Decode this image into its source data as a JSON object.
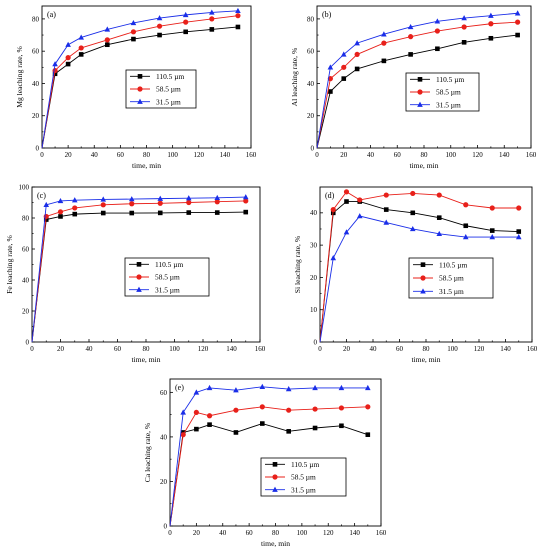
{
  "figure": {
    "series_names": [
      "110.5 µm",
      "58.5 µm",
      "31.5 µm"
    ],
    "series_colors": [
      "#000000",
      "#e8201a",
      "#1a2ee8"
    ],
    "series_markers": [
      "square",
      "circle",
      "triangle"
    ]
  },
  "chart_data": [
    {
      "type": "line",
      "panel_label": "(a)",
      "xlabel": "time, min",
      "ylabel": "Mg leaching rate, %",
      "xlim": [
        0,
        160
      ],
      "ylim": [
        0,
        88
      ],
      "xticks": [
        0,
        20,
        40,
        60,
        80,
        100,
        120,
        140,
        160
      ],
      "yticks": [
        0,
        20,
        40,
        60,
        80
      ],
      "legend_position": "center-right",
      "grid": false,
      "x": [
        0,
        10,
        20,
        30,
        50,
        70,
        90,
        110,
        130,
        150
      ],
      "series": [
        {
          "name": "110.5 µm",
          "values": [
            0,
            46,
            52,
            58,
            64,
            67.5,
            70,
            72,
            73.5,
            75
          ]
        },
        {
          "name": "58.5 µm",
          "values": [
            0,
            48,
            56,
            62,
            67,
            72,
            75.5,
            78,
            80,
            82
          ]
        },
        {
          "name": "31.5 µm",
          "values": [
            0,
            52,
            64,
            68.5,
            73.5,
            77.5,
            80.5,
            82.5,
            84,
            85
          ]
        }
      ]
    },
    {
      "type": "line",
      "panel_label": "(b)",
      "xlabel": "time, min",
      "ylabel": "Al leaching rate, %",
      "xlim": [
        0,
        160
      ],
      "ylim": [
        0,
        88
      ],
      "xticks": [
        0,
        20,
        40,
        60,
        80,
        100,
        120,
        140,
        160
      ],
      "yticks": [
        0,
        20,
        40,
        60,
        80
      ],
      "legend_position": "center-right",
      "grid": false,
      "x": [
        0,
        10,
        20,
        30,
        50,
        70,
        90,
        110,
        130,
        150
      ],
      "series": [
        {
          "name": "110.5 µm",
          "values": [
            0,
            35,
            43,
            49,
            54,
            58,
            61.5,
            65.5,
            68,
            70
          ]
        },
        {
          "name": "58.5 µm",
          "values": [
            0,
            43,
            50,
            58,
            65,
            69,
            72.5,
            75,
            77,
            78
          ]
        },
        {
          "name": "31.5 µm",
          "values": [
            0,
            50,
            58,
            65,
            70.5,
            75,
            78.5,
            80.5,
            82,
            83.5
          ]
        }
      ]
    },
    {
      "type": "line",
      "panel_label": "(c)",
      "xlabel": "time, min",
      "ylabel": "Fe leaching rate, %",
      "xlim": [
        0,
        160
      ],
      "ylim": [
        0,
        100
      ],
      "xticks": [
        0,
        20,
        40,
        60,
        80,
        100,
        120,
        140,
        160
      ],
      "yticks": [
        0,
        20,
        40,
        60,
        80,
        100
      ],
      "legend_position": "center-right",
      "grid": false,
      "x": [
        0,
        10,
        20,
        30,
        50,
        70,
        90,
        110,
        130,
        150
      ],
      "series": [
        {
          "name": "110.5 µm",
          "values": [
            0,
            79,
            81,
            82.5,
            83.2,
            83.2,
            83.3,
            83.5,
            83.5,
            83.8
          ]
        },
        {
          "name": "58.5 µm",
          "values": [
            0,
            81,
            84,
            86.5,
            88.5,
            89.2,
            89.5,
            90,
            90.5,
            91
          ]
        },
        {
          "name": "31.5 µm",
          "values": [
            0,
            88.5,
            91,
            91.5,
            92,
            92.2,
            92.5,
            92.8,
            93,
            93.5
          ]
        }
      ]
    },
    {
      "type": "line",
      "panel_label": "(d)",
      "xlabel": "time, min",
      "ylabel": "Si leaching rate, %",
      "xlim": [
        0,
        160
      ],
      "ylim": [
        0,
        48
      ],
      "xticks": [
        0,
        20,
        40,
        60,
        80,
        100,
        120,
        140,
        160
      ],
      "yticks": [
        0,
        10,
        20,
        30,
        40
      ],
      "legend_position": "center-right",
      "grid": false,
      "x": [
        0,
        10,
        20,
        30,
        50,
        70,
        90,
        110,
        130,
        150
      ],
      "series": [
        {
          "name": "110.5 µm",
          "values": [
            0,
            40,
            43.5,
            43.5,
            41,
            40,
            38.5,
            36,
            34.5,
            34.2
          ]
        },
        {
          "name": "58.5 µm",
          "values": [
            0,
            41,
            46.5,
            44,
            45.5,
            46,
            45.5,
            42.5,
            41.5,
            41.5
          ]
        },
        {
          "name": "31.5 µm",
          "values": [
            0,
            26,
            34,
            39,
            37,
            35,
            33.5,
            32.5,
            32.5,
            32.5
          ]
        }
      ]
    },
    {
      "type": "line",
      "panel_label": "(e)",
      "xlabel": "time, min",
      "ylabel": "Ca leaching rate, %",
      "xlim": [
        0,
        160
      ],
      "ylim": [
        0,
        66
      ],
      "xticks": [
        0,
        20,
        40,
        60,
        80,
        100,
        120,
        140,
        160
      ],
      "yticks": [
        0,
        20,
        40,
        60
      ],
      "legend_position": "center-right",
      "grid": false,
      "x": [
        0,
        10,
        20,
        30,
        50,
        70,
        90,
        110,
        130,
        150
      ],
      "series": [
        {
          "name": "110.5 µm",
          "values": [
            0,
            42,
            43.5,
            45.5,
            42,
            46,
            42.5,
            44,
            45,
            41
          ]
        },
        {
          "name": "58.5 µm",
          "values": [
            0,
            41,
            51,
            49.5,
            52,
            53.5,
            52,
            52.5,
            53,
            53.5
          ]
        },
        {
          "name": "31.5 µm",
          "values": [
            0,
            51,
            60,
            62,
            61,
            62.5,
            61.5,
            62,
            62,
            62
          ]
        }
      ]
    }
  ]
}
